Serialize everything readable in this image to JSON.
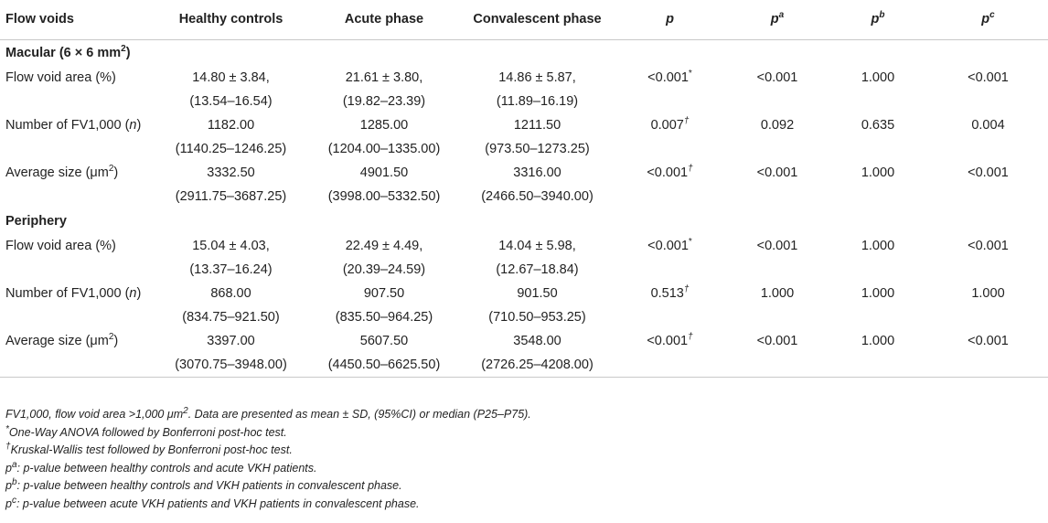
{
  "header": {
    "col0": "Flow voids",
    "col1": "Healthy controls",
    "col2": "Acute phase",
    "col3": "Convalescent phase",
    "col4": "p",
    "col5": "p",
    "col5_sup": "a",
    "col6": "p",
    "col6_sup": "b",
    "col7": "p",
    "col7_sup": "c"
  },
  "sections": [
    {
      "title": "Macular (6 × 6 mm",
      "title_sup": "2",
      "title_end": ")",
      "rows": [
        {
          "label": "Flow void area (%)",
          "hc": "14.80 ± 3.84,",
          "hc2": "(13.54–16.54)",
          "ac": "21.61 ± 3.80,",
          "ac2": "(19.82–23.39)",
          "cv": "14.86 ± 5.87,",
          "cv2": "(11.89–16.19)",
          "p": "<0.001",
          "p_sup": "*",
          "pa": "<0.001",
          "pb": "1.000",
          "pc": "<0.001"
        },
        {
          "label": "Number of FV1,000 (",
          "label_it": "n",
          "label_end": ")",
          "hc": "1182.00",
          "hc2": "(1140.25–1246.25)",
          "ac": "1285.00",
          "ac2": "(1204.00–1335.00)",
          "cv": "1211.50",
          "cv2": "(973.50–1273.25)",
          "p": "0.007",
          "p_sup": "†",
          "pa": "0.092",
          "pb": "0.635",
          "pc": "0.004"
        },
        {
          "label": "Average size (μm",
          "label_sup": "2",
          "label_end": ")",
          "hc": "3332.50",
          "hc2": "(2911.75–3687.25)",
          "ac": "4901.50",
          "ac2": "(3998.00–5332.50)",
          "cv": "3316.00",
          "cv2": "(2466.50–3940.00)",
          "p": "<0.001",
          "p_sup": "†",
          "pa": "<0.001",
          "pb": "1.000",
          "pc": "<0.001"
        }
      ]
    },
    {
      "title": "Periphery",
      "rows": [
        {
          "label": "Flow void area (%)",
          "hc": "15.04 ± 4.03,",
          "hc2": "(13.37–16.24)",
          "ac": "22.49 ± 4.49,",
          "ac2": "(20.39–24.59)",
          "cv": "14.04 ± 5.98,",
          "cv2": "(12.67–18.84)",
          "p": "<0.001",
          "p_sup": "*",
          "pa": "<0.001",
          "pb": "1.000",
          "pc": "<0.001"
        },
        {
          "label": "Number of FV1,000 (",
          "label_it": "n",
          "label_end": ")",
          "hc": "868.00",
          "hc2": "(834.75–921.50)",
          "ac": "907.50",
          "ac2": "(835.50–964.25)",
          "cv": "901.50",
          "cv2": "(710.50–953.25)",
          "p": "0.513",
          "p_sup": "†",
          "pa": "1.000",
          "pb": "1.000",
          "pc": "1.000"
        },
        {
          "label": "Average size (μm",
          "label_sup": "2",
          "label_end": ")",
          "hc": "3397.00",
          "hc2": "(3070.75–3948.00)",
          "ac": "5607.50",
          "ac2": "(4450.50–6625.50)",
          "cv": "3548.00",
          "cv2": "(2726.25–4208.00)",
          "p": "<0.001",
          "p_sup": "†",
          "pa": "<0.001",
          "pb": "1.000",
          "pc": "<0.001"
        }
      ]
    }
  ],
  "notes": {
    "n1": "FV1,000, flow void area >1,000 μm",
    "n1_sup": "2",
    "n1_end": ". Data are presented as mean ± SD, (95%CI) or median (P25–P75).",
    "n2_sup": "*",
    "n2": "One-Way ANOVA followed by Bonferroni post-hoc test.",
    "n3_sup": "†",
    "n3": "Kruskal-Wallis test followed by Bonferroni post-hoc test.",
    "n4_p": "p",
    "n4_sup": "a",
    "n4": ": p-value between healthy controls and acute VKH patients.",
    "n5_p": "p",
    "n5_sup": "b",
    "n5": ": p-value between healthy controls and VKH patients in convalescent phase.",
    "n6_p": "p",
    "n6_sup": "c",
    "n6": ": p-value between acute VKH patients and VKH patients in convalescent phase."
  }
}
